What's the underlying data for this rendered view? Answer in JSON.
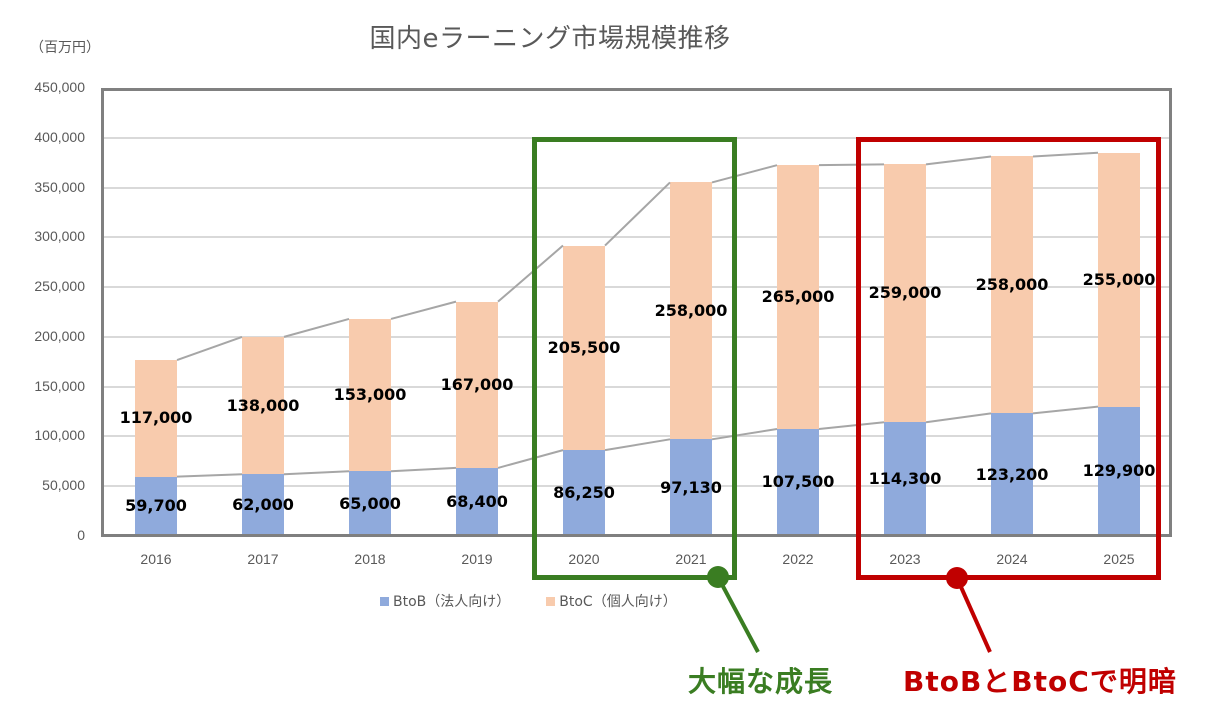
{
  "chart_data": {
    "type": "bar",
    "stacked": true,
    "title": "国内eラーニング市場規模推移",
    "ylabel": "（百万円）",
    "xlabel": "",
    "ylim": [
      0,
      450000
    ],
    "yticks": [
      "450,000",
      "400,000",
      "350,000",
      "300,000",
      "250,000",
      "200,000",
      "150,000",
      "100,000",
      "50,000",
      "0"
    ],
    "grid": true,
    "legend_position": "bottom",
    "categories": [
      "2016",
      "2017",
      "2018",
      "2019",
      "2020",
      "2021",
      "2022",
      "2023",
      "2024",
      "2025"
    ],
    "series": [
      {
        "name": "BtoB（法人向け）",
        "color": "#8faadc",
        "values": [
          59700,
          62000,
          65000,
          68400,
          86250,
          97130,
          107500,
          114300,
          123200,
          129900
        ],
        "labels": [
          "59,700",
          "62,000",
          "65,000",
          "68,400",
          "86,250",
          "97,130",
          "107,500",
          "114,300",
          "123,200",
          "129,900"
        ]
      },
      {
        "name": "BtoC（個人向け）",
        "color": "#f8cbad",
        "values": [
          117000,
          138000,
          153000,
          167000,
          205500,
          258000,
          265000,
          259000,
          258000,
          255000
        ],
        "labels": [
          "117,000",
          "138,000",
          "153,000",
          "167,000",
          "205,500",
          "258,000",
          "265,000",
          "259,000",
          "258,000",
          "255,000"
        ]
      }
    ],
    "series_lines": "gray connector lines join tops of each stacked segment",
    "annotations": [
      {
        "text": "大幅な成長",
        "color": "#3a7d22",
        "range": [
          "2020",
          "2021"
        ]
      },
      {
        "text": "BtoBとBtoCで明暗",
        "color": "#c00000",
        "range": [
          "2023",
          "2025"
        ]
      }
    ]
  },
  "header": {
    "title": "国内eラーニング市場規模推移",
    "unit": "（百万円）"
  },
  "yaxis": {
    "ticks": [
      "450,000",
      "400,000",
      "350,000",
      "300,000",
      "250,000",
      "200,000",
      "150,000",
      "100,000",
      "50,000",
      "0"
    ]
  },
  "xaxis": {
    "ticks": [
      "2016",
      "2017",
      "2018",
      "2019",
      "2020",
      "2021",
      "2022",
      "2023",
      "2024",
      "2025"
    ]
  },
  "labels": {
    "btob": [
      "59,700",
      "62,000",
      "65,000",
      "68,400",
      "86,250",
      "97,130",
      "107,500",
      "114,300",
      "123,200",
      "129,900"
    ],
    "btoc": [
      "117,000",
      "138,000",
      "153,000",
      "167,000",
      "205,500",
      "258,000",
      "265,000",
      "259,000",
      "258,000",
      "255,000"
    ]
  },
  "legend": {
    "btob": "BtoB（法人向け）",
    "btoc": "BtoC（個人向け）"
  },
  "annotations": {
    "growth": "大幅な成長",
    "contrast": "BtoBとBtoCで明暗"
  },
  "colors": {
    "btob": "#8faadc",
    "btoc": "#f8cbad",
    "growth": "#3a7d22",
    "contrast": "#c00000",
    "axis_text": "#595959",
    "frame": "#808080"
  }
}
